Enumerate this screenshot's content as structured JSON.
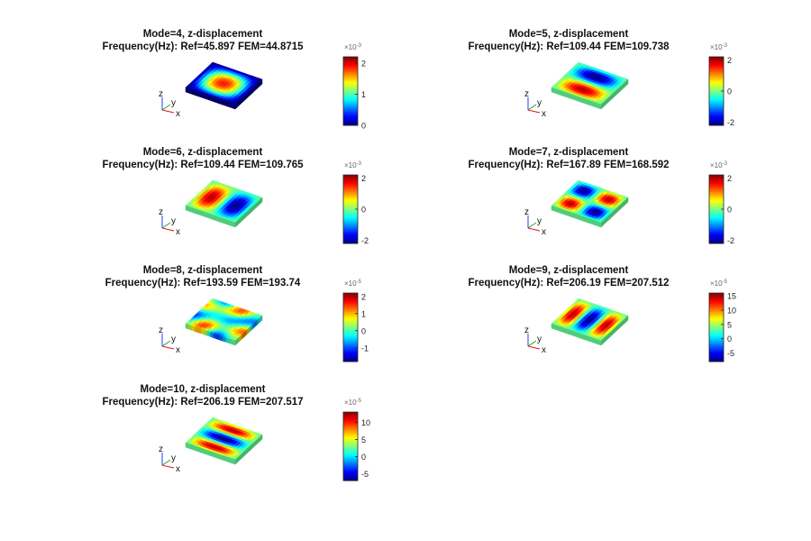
{
  "figure": {
    "chart_data": [
      {
        "type": "heatmap",
        "mode": 4,
        "title": "Mode=4, z-displacement",
        "subtitle": "Frequency(Hz): Ref=45.897 FEM=44.8715",
        "colorbar": {
          "ticks": [
            "2",
            "1",
            "0"
          ],
          "tick_values": [
            2,
            1,
            0
          ],
          "range": [
            0,
            2.2
          ],
          "exponent_label": "×10",
          "exponent": "-3"
        },
        "axes_labels": [
          "z",
          "y",
          "x"
        ],
        "pattern": {
          "nx": 1,
          "ny": 1,
          "diagonal": 0,
          "mag": 0.9
        }
      },
      {
        "type": "heatmap",
        "mode": 5,
        "title": "Mode=5, z-displacement",
        "subtitle": "Frequency(Hz): Ref=109.44 FEM=109.738",
        "colorbar": {
          "ticks": [
            "2",
            "0",
            "-2"
          ],
          "tick_values": [
            2,
            0,
            -2
          ],
          "range": [
            -2.2,
            2.2
          ],
          "exponent_label": "×10",
          "exponent": "-3"
        },
        "axes_labels": [
          "z",
          "y",
          "x"
        ],
        "pattern": {
          "nx": 1,
          "ny": 2,
          "diagonal": 0,
          "mag": 1
        }
      },
      {
        "type": "heatmap",
        "mode": 6,
        "title": "Mode=6, z-displacement",
        "subtitle": "Frequency(Hz): Ref=109.44 FEM=109.765",
        "colorbar": {
          "ticks": [
            "2",
            "0",
            "-2"
          ],
          "tick_values": [
            2,
            0,
            -2
          ],
          "range": [
            -2.2,
            2.2
          ],
          "exponent_label": "×10",
          "exponent": "-3"
        },
        "axes_labels": [
          "z",
          "y",
          "x"
        ],
        "pattern": {
          "nx": 2,
          "ny": 1,
          "diagonal": 0,
          "mag": 1
        }
      },
      {
        "type": "heatmap",
        "mode": 7,
        "title": "Mode=7, z-displacement",
        "subtitle": "Frequency(Hz): Ref=167.89 FEM=168.592",
        "colorbar": {
          "ticks": [
            "2",
            "0",
            "-2"
          ],
          "tick_values": [
            2,
            0,
            -2
          ],
          "range": [
            -2.2,
            2.2
          ],
          "exponent_label": "×10",
          "exponent": "-3"
        },
        "axes_labels": [
          "z",
          "y",
          "x"
        ],
        "pattern": {
          "nx": 2,
          "ny": 2,
          "diagonal": 0,
          "mag": 1
        }
      },
      {
        "type": "heatmap",
        "mode": 8,
        "title": "Mode=8, z-displacement",
        "subtitle": "Frequency(Hz): Ref=193.59 FEM=193.74",
        "colorbar": {
          "ticks": [
            "2",
            "1",
            "0",
            "-1"
          ],
          "tick_values": [
            2,
            1,
            0,
            -1
          ],
          "range": [
            -1.8,
            2.2
          ],
          "exponent_label": "×10",
          "exponent": "-5"
        },
        "axes_labels": [
          "z",
          "y",
          "x"
        ],
        "pattern": {
          "nx": 3,
          "ny": 1,
          "diagonal": 0.7,
          "mag": 1
        }
      },
      {
        "type": "heatmap",
        "mode": 9,
        "title": "Mode=9, z-displacement",
        "subtitle": "Frequency(Hz): Ref=206.19 FEM=207.512",
        "colorbar": {
          "ticks": [
            "15",
            "10",
            "5",
            "0",
            "-5"
          ],
          "tick_values": [
            15,
            10,
            5,
            0,
            -5
          ],
          "range": [
            -8,
            16
          ],
          "exponent_label": "×10",
          "exponent": "-5"
        },
        "axes_labels": [
          "z",
          "y",
          "x"
        ],
        "pattern": {
          "nx": 3,
          "ny": 1,
          "diagonal": 0,
          "mag": 1
        }
      },
      {
        "type": "heatmap",
        "mode": 10,
        "title": "Mode=10, z-displacement",
        "subtitle": "Frequency(Hz): Ref=206.19 FEM=207.517",
        "colorbar": {
          "ticks": [
            "10",
            "5",
            "0",
            "-5"
          ],
          "tick_values": [
            10,
            5,
            0,
            -5
          ],
          "range": [
            -7,
            13
          ],
          "exponent_label": "×10",
          "exponent": "-5"
        },
        "axes_labels": [
          "z",
          "y",
          "x"
        ],
        "pattern": {
          "nx": 1,
          "ny": 3,
          "diagonal": 0,
          "mag": 1
        }
      }
    ]
  }
}
